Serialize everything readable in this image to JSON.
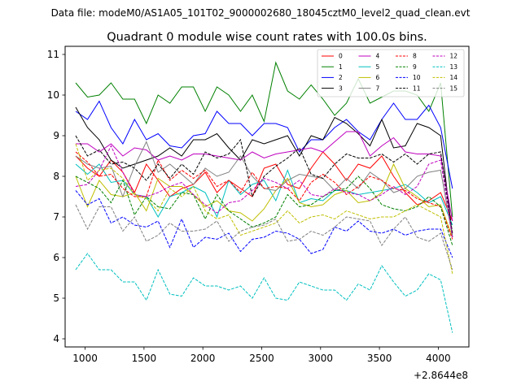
{
  "figure": {
    "suptitle": "Data file: modeM0/AS1A05_101T02_9000002680_18045cztM0_level2_quad_clean.evt"
  },
  "chart_data": {
    "type": "line",
    "title": "Quadrant 0 module wise count rates with 100.0s bins.",
    "xlabel": "",
    "ylabel": "",
    "x_offset_label": "+2.8644e8",
    "xlim": [
      830,
      4260
    ],
    "ylim": [
      3.8,
      11.2
    ],
    "xticks": [
      1000,
      1500,
      2000,
      2500,
      3000,
      3500,
      4000
    ],
    "yticks": [
      4,
      5,
      6,
      7,
      8,
      9,
      10,
      11
    ],
    "grid": false,
    "legend_position": "top-right",
    "legend_columns": 4,
    "x": [
      920,
      1020,
      1120,
      1220,
      1320,
      1420,
      1520,
      1620,
      1720,
      1820,
      1920,
      2020,
      2120,
      2220,
      2320,
      2420,
      2520,
      2620,
      2720,
      2820,
      2920,
      3020,
      3120,
      3220,
      3320,
      3420,
      3520,
      3620,
      3720,
      3820,
      3920,
      4020,
      4120
    ],
    "series": [
      {
        "name": "0",
        "color": "#ff0000",
        "dash": "solid",
        "values": [
          8.5,
          8.2,
          8.0,
          8.4,
          8.1,
          7.6,
          8.3,
          7.9,
          7.5,
          7.7,
          7.8,
          8.1,
          7.6,
          7.9,
          7.7,
          7.5,
          8.2,
          8.3,
          7.8,
          7.7,
          8.2,
          8.6,
          8.3,
          7.9,
          8.3,
          8.2,
          8.5,
          8.0,
          7.6,
          7.3,
          7.4,
          7.6,
          6.9
        ]
      },
      {
        "name": "1",
        "color": "#008000",
        "dash": "solid",
        "values": [
          10.3,
          9.95,
          10.0,
          10.3,
          9.9,
          9.9,
          9.3,
          10.0,
          9.8,
          10.2,
          10.2,
          9.6,
          10.2,
          10.0,
          9.6,
          10.0,
          9.35,
          10.8,
          10.1,
          9.9,
          10.25,
          9.9,
          9.5,
          9.8,
          10.4,
          9.8,
          9.95,
          10.1,
          10.1,
          10.0,
          9.6,
          10.3,
          7.0
        ]
      },
      {
        "name": "2",
        "color": "#0000ff",
        "dash": "solid",
        "values": [
          9.6,
          9.4,
          9.85,
          9.2,
          8.8,
          9.4,
          8.9,
          9.05,
          8.75,
          8.7,
          9.0,
          9.05,
          9.6,
          9.3,
          9.3,
          9.0,
          9.3,
          9.3,
          9.2,
          8.6,
          8.9,
          8.9,
          9.2,
          9.4,
          9.1,
          8.9,
          9.4,
          9.8,
          9.4,
          9.4,
          9.75,
          9.2,
          7.7
        ]
      },
      {
        "name": "3",
        "color": "#000000",
        "dash": "solid",
        "values": [
          9.7,
          9.2,
          8.9,
          8.4,
          8.2,
          8.3,
          8.4,
          8.5,
          8.7,
          8.5,
          8.9,
          8.9,
          9.05,
          8.7,
          8.4,
          8.9,
          8.8,
          8.9,
          9.0,
          8.5,
          9.0,
          8.9,
          9.45,
          9.3,
          9.05,
          8.75,
          9.4,
          8.7,
          8.75,
          9.3,
          9.2,
          9.0,
          6.5
        ]
      },
      {
        "name": "4",
        "color": "#bf00bf",
        "dash": "solid",
        "values": [
          8.8,
          8.8,
          8.6,
          8.8,
          8.5,
          8.7,
          8.65,
          8.4,
          8.5,
          8.4,
          8.55,
          8.55,
          8.5,
          8.45,
          8.4,
          8.6,
          8.45,
          8.55,
          8.6,
          8.65,
          8.7,
          8.6,
          8.85,
          9.1,
          9.1,
          8.5,
          8.75,
          8.95,
          8.6,
          8.55,
          8.55,
          8.5,
          6.9
        ]
      },
      {
        "name": "5",
        "color": "#00bfbf",
        "dash": "solid",
        "values": [
          8.3,
          8.05,
          8.3,
          7.85,
          7.9,
          7.55,
          7.5,
          7.0,
          7.5,
          7.6,
          7.75,
          7.6,
          7.0,
          7.9,
          7.55,
          7.8,
          7.9,
          7.4,
          8.15,
          7.35,
          7.45,
          7.4,
          7.65,
          7.65,
          7.55,
          7.6,
          7.65,
          7.7,
          7.8,
          7.6,
          7.35,
          7.5,
          6.8
        ]
      },
      {
        "name": "6",
        "color": "#bfbf00",
        "dash": "solid",
        "values": [
          8.0,
          7.25,
          7.9,
          7.55,
          7.5,
          7.6,
          7.15,
          7.95,
          7.75,
          7.75,
          7.55,
          7.25,
          7.4,
          7.15,
          7.1,
          6.9,
          7.2,
          7.65,
          7.95,
          7.35,
          7.25,
          7.3,
          7.55,
          7.65,
          7.35,
          7.4,
          7.6,
          8.3,
          7.7,
          7.5,
          7.25,
          7.3,
          6.5
        ]
      },
      {
        "name": "7",
        "color": "#808080",
        "dash": "solid",
        "values": [
          8.5,
          8.3,
          8.2,
          8.25,
          7.5,
          8.25,
          8.85,
          8.1,
          8.3,
          8.05,
          7.8,
          8.2,
          8.0,
          8.1,
          8.5,
          8.0,
          7.7,
          7.65,
          7.9,
          8.05,
          8.0,
          7.95,
          7.65,
          7.95,
          7.7,
          8.1,
          7.9,
          7.6,
          7.7,
          8.0,
          8.1,
          8.15,
          6.5
        ]
      },
      {
        "name": "8",
        "color": "#ff0000",
        "dash": "dashed",
        "values": [
          8.6,
          8.35,
          8.0,
          8.05,
          7.7,
          7.5,
          7.5,
          8.4,
          7.9,
          8.15,
          7.95,
          8.15,
          7.75,
          7.9,
          7.6,
          8.1,
          7.7,
          7.75,
          7.7,
          7.4,
          7.85,
          8.05,
          7.85,
          7.55,
          7.75,
          8.0,
          7.9,
          7.7,
          7.65,
          7.45,
          7.35,
          7.25,
          6.45
        ]
      },
      {
        "name": "9",
        "color": "#008000",
        "dash": "dashed",
        "values": [
          8.0,
          7.85,
          7.7,
          7.35,
          7.9,
          7.05,
          7.5,
          7.25,
          7.2,
          7.6,
          7.55,
          6.95,
          7.55,
          7.15,
          6.95,
          6.75,
          6.85,
          7.0,
          7.55,
          7.25,
          7.3,
          7.5,
          7.65,
          7.7,
          8.0,
          7.7,
          7.3,
          7.2,
          7.15,
          7.25,
          7.5,
          7.25,
          6.3
        ]
      },
      {
        "name": "10",
        "color": "#0000ff",
        "dash": "dashed",
        "values": [
          7.65,
          7.3,
          7.45,
          6.85,
          7.0,
          6.8,
          6.75,
          6.9,
          6.25,
          6.95,
          6.25,
          6.5,
          6.45,
          6.6,
          6.15,
          6.45,
          6.5,
          6.65,
          6.6,
          6.45,
          6.1,
          6.2,
          6.75,
          6.65,
          6.9,
          6.65,
          6.6,
          6.7,
          6.55,
          6.65,
          6.7,
          6.7,
          6.0
        ]
      },
      {
        "name": "11",
        "color": "#000000",
        "dash": "dashed",
        "values": [
          9.0,
          8.5,
          8.65,
          8.3,
          8.35,
          8.2,
          7.9,
          8.3,
          7.95,
          8.3,
          8.05,
          8.6,
          8.45,
          8.55,
          8.9,
          7.5,
          8.0,
          8.25,
          8.45,
          8.7,
          8.05,
          7.95,
          8.3,
          8.55,
          8.45,
          8.45,
          8.55,
          8.35,
          8.55,
          8.3,
          8.55,
          8.6,
          6.6
        ]
      },
      {
        "name": "12",
        "color": "#bf00bf",
        "dash": "dashed",
        "values": [
          7.75,
          7.8,
          8.15,
          8.75,
          8.1,
          7.55,
          7.5,
          7.6,
          7.75,
          7.85,
          7.55,
          7.3,
          7.1,
          7.35,
          7.4,
          7.65,
          7.95,
          7.85,
          7.7,
          7.9,
          7.55,
          7.5,
          7.7,
          7.6,
          7.55,
          7.4,
          7.55,
          7.75,
          7.55,
          7.75,
          8.3,
          8.4,
          6.5
        ]
      },
      {
        "name": "13",
        "color": "#00bfbf",
        "dash": "dashed",
        "values": [
          5.7,
          6.1,
          5.7,
          5.7,
          5.4,
          5.4,
          4.95,
          5.7,
          5.1,
          5.05,
          5.5,
          5.3,
          5.3,
          5.2,
          5.3,
          5.0,
          5.5,
          5.0,
          4.95,
          5.4,
          5.3,
          5.2,
          5.2,
          4.95,
          5.35,
          5.2,
          5.8,
          5.4,
          5.05,
          5.2,
          5.6,
          5.45,
          4.15
        ]
      },
      {
        "name": "14",
        "color": "#bfbf00",
        "dash": "dashed",
        "values": [
          8.8,
          7.9,
          8.15,
          8.2,
          7.95,
          7.55,
          7.45,
          7.15,
          7.7,
          7.5,
          7.75,
          7.15,
          6.95,
          7.05,
          6.55,
          6.65,
          6.75,
          6.85,
          7.15,
          6.85,
          7.0,
          7.05,
          6.95,
          7.15,
          7.05,
          6.95,
          7.0,
          7.0,
          7.15,
          7.3,
          7.15,
          7.0,
          5.6
        ]
      },
      {
        "name": "15",
        "color": "#808080",
        "dash": "dashed",
        "values": [
          7.3,
          6.7,
          7.25,
          7.25,
          6.65,
          7.0,
          6.4,
          6.55,
          6.85,
          6.65,
          6.65,
          6.7,
          6.9,
          6.4,
          6.65,
          6.75,
          6.8,
          6.95,
          6.4,
          6.45,
          6.65,
          6.55,
          6.75,
          7.0,
          6.95,
          6.9,
          6.3,
          6.7,
          7.0,
          6.5,
          6.4,
          6.6,
          5.7
        ]
      }
    ]
  }
}
